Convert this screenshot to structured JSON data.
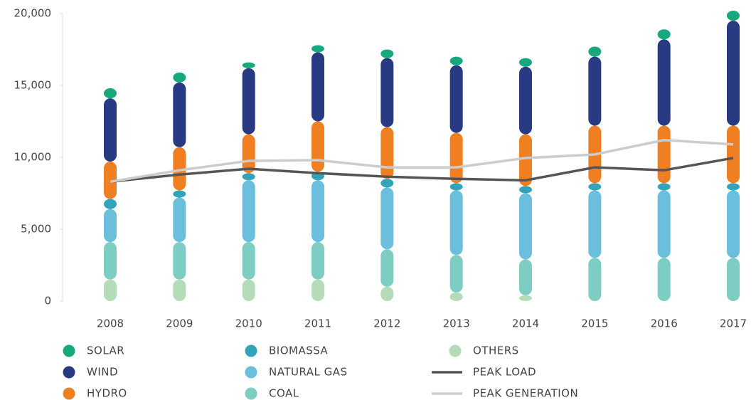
{
  "chart_data": {
    "type": "bar",
    "stacked": true,
    "categories": [
      "2008",
      "2009",
      "2010",
      "2011",
      "2012",
      "2013",
      "2014",
      "2015",
      "2016",
      "2017"
    ],
    "ylim": [
      0,
      20000
    ],
    "yticks": [
      {
        "value": 0,
        "label": "0"
      },
      {
        "value": 5000,
        "label": "5,000"
      },
      {
        "value": 10000,
        "label": "10,000"
      },
      {
        "value": 15000,
        "label": "15,000"
      },
      {
        "value": 20000,
        "label": "20,000"
      }
    ],
    "series": [
      {
        "name": "SOLAR",
        "color": "#17a97d",
        "values": [
          700,
          700,
          400,
          500,
          600,
          600,
          600,
          700,
          700,
          700
        ]
      },
      {
        "name": "WIND",
        "color": "#283a82",
        "values": [
          4400,
          4500,
          4600,
          4800,
          4800,
          4700,
          4700,
          4800,
          6000,
          7300
        ]
      },
      {
        "name": "HYDRO",
        "color": "#f07f22",
        "values": [
          2600,
          3000,
          2700,
          3500,
          3600,
          3500,
          3600,
          4000,
          4000,
          4000
        ]
      },
      {
        "name": "BIOMASSA",
        "color": "#33a3bb",
        "values": [
          700,
          500,
          500,
          600,
          600,
          500,
          500,
          500,
          500,
          500
        ]
      },
      {
        "name": "NATURAL GAS",
        "color": "#6bbfdc",
        "values": [
          2300,
          3100,
          4300,
          4300,
          4300,
          4500,
          4600,
          4700,
          4700,
          4700
        ]
      },
      {
        "name": "COAL",
        "color": "#7ecdc3",
        "values": [
          2600,
          2600,
          2600,
          2600,
          2600,
          2600,
          2500,
          3000,
          3000,
          3000
        ]
      },
      {
        "name": "OTHERS",
        "color": "#b4dcb8",
        "values": [
          1500,
          1500,
          1500,
          1500,
          1000,
          600,
          400,
          0,
          0,
          0
        ]
      },
      {
        "name": "PEAK LOAD",
        "type": "line",
        "color": "#555555",
        "values": [
          8300,
          8800,
          9200,
          8900,
          8650,
          8500,
          8400,
          9300,
          9100,
          9950
        ]
      },
      {
        "name": "PEAK GENERATION",
        "type": "line",
        "color": "#cccccc",
        "values": [
          8300,
          9100,
          9750,
          9800,
          9300,
          9300,
          9950,
          10200,
          11200,
          10900
        ]
      }
    ]
  }
}
